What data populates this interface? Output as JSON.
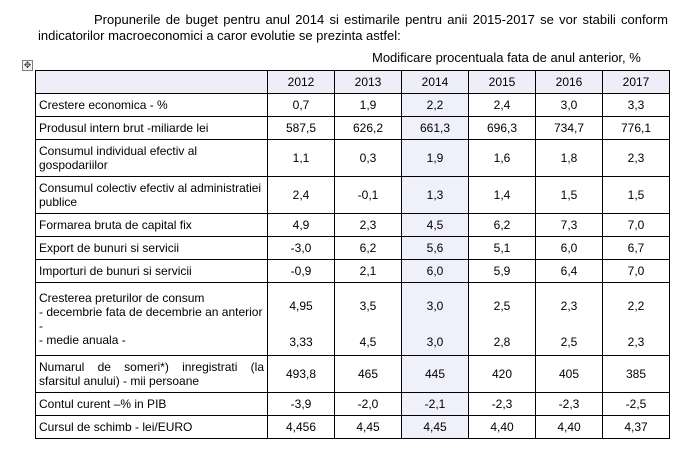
{
  "intro_text": "Propunerile de buget pentru anul 2014 si estimarile pentru anii 2015-2017 se vor stabili conform indicatorilor macroeconomici a caror evolutie se prezinta astfel:",
  "unit_note": "Modificare procentuala fata de anul anterior, %",
  "anchor_icon": "table-move-handle-icon",
  "years": [
    "2012",
    "2013",
    "2014",
    "2015",
    "2016",
    "2017"
  ],
  "rows": [
    {
      "label": "Crestere economica - %",
      "values": [
        "0,7",
        "1,9",
        "2,2",
        "2,4",
        "3,0",
        "3,3"
      ]
    },
    {
      "label": "Produsul intern brut -miliarde lei",
      "values": [
        "587,5",
        "626,2",
        "661,3",
        "696,3",
        "734,7",
        "776,1"
      ]
    },
    {
      "label": "Consumul individual efectiv al gospodariilor",
      "values": [
        "1,1",
        "0,3",
        "1,9",
        "1,6",
        "1,8",
        "2,3"
      ]
    },
    {
      "label": "Consumul colectiv efectiv al administratiei publice",
      "values": [
        "2,4",
        "-0,1",
        "1,3",
        "1,4",
        "1,5",
        "1,5"
      ]
    },
    {
      "label": "Formarea bruta de capital fix",
      "values": [
        "4,9",
        "2,3",
        "4,5",
        "6,2",
        "7,3",
        "7,0"
      ]
    },
    {
      "label": "Export de bunuri si servicii",
      "values": [
        "-3,0",
        "6,2",
        "5,6",
        "5,1",
        "6,0",
        "6,7"
      ]
    },
    {
      "label": "Importuri de bunuri si servicii",
      "values": [
        "-0,9",
        "2,1",
        "6,0",
        "5,9",
        "6,4",
        "7,0"
      ]
    }
  ],
  "prices": {
    "label_main": "Cresterea preturilor de consum",
    "label_dec": " - decembrie fata de decembrie an anterior -",
    "label_avg": " - medie anuala -",
    "dec_values": [
      "4,95",
      "3,5",
      "3,0",
      "2,5",
      "2,3",
      "2,2"
    ],
    "avg_values": [
      "3,33",
      "4,5",
      "3,0",
      "2,8",
      "2,5",
      "2,3"
    ]
  },
  "rows_bottom": [
    {
      "label": "Numarul de someri*) inregistrati (la sfarsitul anului) - mii persoane",
      "values": [
        "493,8",
        "465",
        "445",
        "420",
        "405",
        "385"
      ]
    },
    {
      "label": "Contul curent –% in PIB",
      "values": [
        "-3,9",
        "-2,0",
        "-2,1",
        "-2,3",
        "-2,3",
        "-2,5"
      ]
    },
    {
      "label": "Cursul de schimb - lei/EURO",
      "values": [
        "4,456",
        "4,45",
        "4,45",
        "4,40",
        "4,40",
        "4,37"
      ]
    }
  ]
}
